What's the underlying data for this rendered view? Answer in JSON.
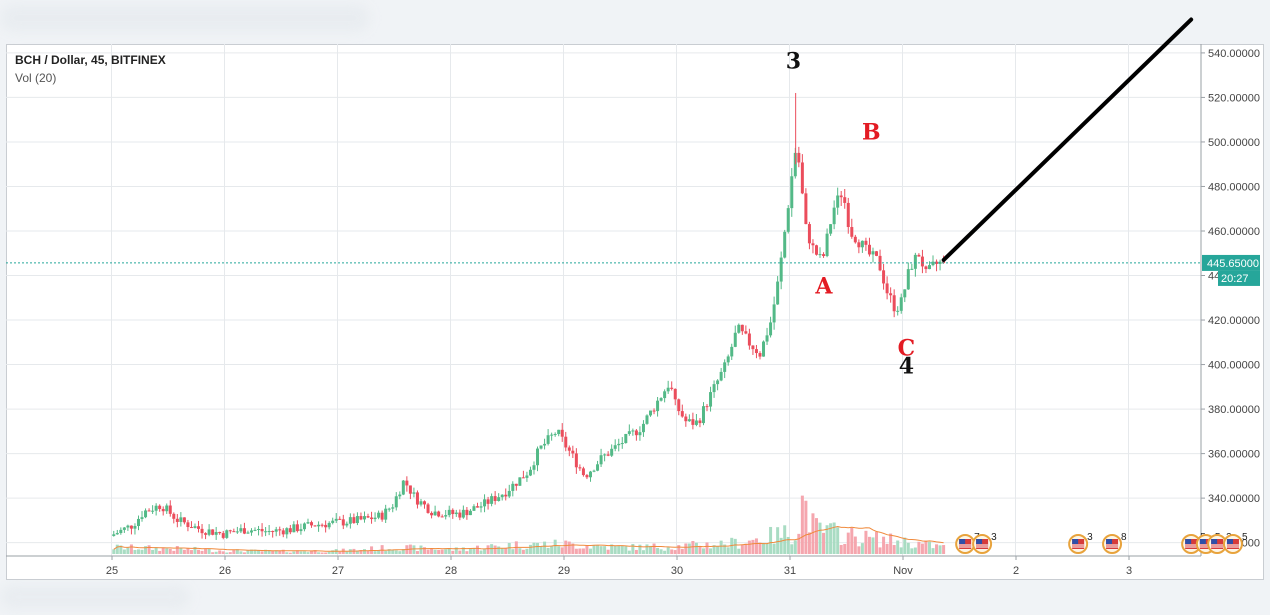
{
  "legend": {
    "title": "BCH / Dollar, 45, BITFINEX",
    "vol": "Vol (20)"
  },
  "price_badge": {
    "price": "445.65000",
    "timer": "20:27"
  },
  "annotations": {
    "wave3": "3",
    "waveB": "B",
    "waveA": "A",
    "waveC": "C",
    "wave4": "4"
  },
  "events": [
    "7",
    "3",
    "3",
    "8",
    "5",
    "5",
    "3",
    "5",
    "5",
    "6",
    "12"
  ],
  "colors": {
    "up": "#53b987",
    "down": "#eb4d5c",
    "vol_up": "#a9dcc3",
    "vol_down": "#f5a6ae",
    "ma": "#f08a3c",
    "last_price": "#26a69a",
    "label_red": "#e31b23",
    "label_black": "#111111",
    "trend_line": "#000000"
  },
  "chart_data": {
    "type": "candlestick",
    "symbol": "BCH / Dollar",
    "interval": "45",
    "exchange": "BITFINEX",
    "indicator": "Vol (20)",
    "ylim": [
      314,
      544
    ],
    "y_ticks": [
      "320.00000",
      "340.00000",
      "360.00000",
      "380.00000",
      "400.00000",
      "420.00000",
      "440.00000",
      "460.00000",
      "480.00000",
      "500.00000",
      "520.00000",
      "540.00000"
    ],
    "y_tick_values": [
      320,
      340,
      360,
      380,
      400,
      420,
      440,
      460,
      480,
      500,
      520,
      540
    ],
    "x_ticks": [
      "25",
      "26",
      "27",
      "28",
      "29",
      "30",
      "31",
      "Nov",
      "2",
      "3"
    ],
    "last_price": 445.65,
    "price_path": [
      [
        0.0,
        323
      ],
      [
        0.2,
        328
      ],
      [
        0.3,
        334
      ],
      [
        0.45,
        337
      ],
      [
        0.6,
        330
      ],
      [
        0.8,
        326
      ],
      [
        1.0,
        324
      ],
      [
        1.2,
        326
      ],
      [
        1.4,
        325
      ],
      [
        1.6,
        326
      ],
      [
        1.8,
        328
      ],
      [
        2.0,
        329
      ],
      [
        2.2,
        330
      ],
      [
        2.4,
        332
      ],
      [
        2.5,
        337
      ],
      [
        2.6,
        348
      ],
      [
        2.7,
        340
      ],
      [
        2.85,
        334
      ],
      [
        3.0,
        333
      ],
      [
        3.1,
        333
      ],
      [
        3.3,
        337
      ],
      [
        3.5,
        343
      ],
      [
        3.7,
        352
      ],
      [
        3.8,
        362
      ],
      [
        3.95,
        370
      ],
      [
        4.1,
        358
      ],
      [
        4.2,
        350
      ],
      [
        4.35,
        358
      ],
      [
        4.5,
        364
      ],
      [
        4.7,
        372
      ],
      [
        4.85,
        384
      ],
      [
        4.95,
        392
      ],
      [
        5.0,
        382
      ],
      [
        5.1,
        374
      ],
      [
        5.2,
        374
      ],
      [
        5.3,
        385
      ],
      [
        5.45,
        400
      ],
      [
        5.55,
        416
      ],
      [
        5.65,
        410
      ],
      [
        5.75,
        405
      ],
      [
        5.85,
        420
      ],
      [
        5.92,
        440
      ],
      [
        6.0,
        472
      ],
      [
        6.06,
        496
      ],
      [
        6.1,
        490
      ],
      [
        6.15,
        462
      ],
      [
        6.22,
        452
      ],
      [
        6.3,
        446
      ],
      [
        6.4,
        470
      ],
      [
        6.48,
        478
      ],
      [
        6.55,
        460
      ],
      [
        6.62,
        456
      ],
      [
        6.7,
        450
      ],
      [
        6.8,
        446
      ],
      [
        6.88,
        432
      ],
      [
        6.95,
        425
      ],
      [
        7.0,
        428
      ],
      [
        7.08,
        444
      ],
      [
        7.16,
        450
      ],
      [
        7.22,
        440
      ],
      [
        7.3,
        445
      ],
      [
        7.36,
        445.65
      ]
    ],
    "high": {
      "x": 6.05,
      "value": 522
    },
    "wave_labels": [
      {
        "label": "3",
        "x": 6.03,
        "value": 533
      },
      {
        "label": "B",
        "x": 6.72,
        "value": 501
      },
      {
        "label": "A",
        "x": 6.3,
        "value": 432
      },
      {
        "label": "C",
        "x": 7.03,
        "value": 404
      },
      {
        "label": "4",
        "x": 7.03,
        "value": 396
      }
    ],
    "trend_line": {
      "from": [
        7.36,
        447
      ],
      "to": [
        9.55,
        555
      ]
    },
    "volume_profile": [
      [
        0.0,
        0.12
      ],
      [
        0.5,
        0.1
      ],
      [
        1.0,
        0.06
      ],
      [
        1.5,
        0.05
      ],
      [
        2.0,
        0.06
      ],
      [
        2.5,
        0.12
      ],
      [
        3.0,
        0.08
      ],
      [
        3.5,
        0.16
      ],
      [
        4.0,
        0.18
      ],
      [
        4.5,
        0.12
      ],
      [
        5.0,
        0.14
      ],
      [
        5.5,
        0.2
      ],
      [
        5.9,
        0.35
      ],
      [
        6.05,
        0.42
      ],
      [
        6.1,
        1.0
      ],
      [
        6.2,
        0.45
      ],
      [
        6.6,
        0.3
      ],
      [
        7.0,
        0.22
      ],
      [
        7.36,
        0.12
      ]
    ],
    "event_days": [
      {
        "x": 7.55,
        "label": "7"
      },
      {
        "x": 7.7,
        "label": "3"
      },
      {
        "x": 8.55,
        "label": "3"
      },
      {
        "x": 8.85,
        "label": "8"
      },
      {
        "x": 9.55,
        "label": "5"
      },
      {
        "x": 9.68,
        "label": "5"
      },
      {
        "x": 9.78,
        "label": "3"
      },
      {
        "x": 9.92,
        "label": "5"
      },
      {
        "x": 10.55,
        "label": "5"
      },
      {
        "x": 10.68,
        "label": "6"
      },
      {
        "x": 11.55,
        "label": "12"
      }
    ]
  }
}
